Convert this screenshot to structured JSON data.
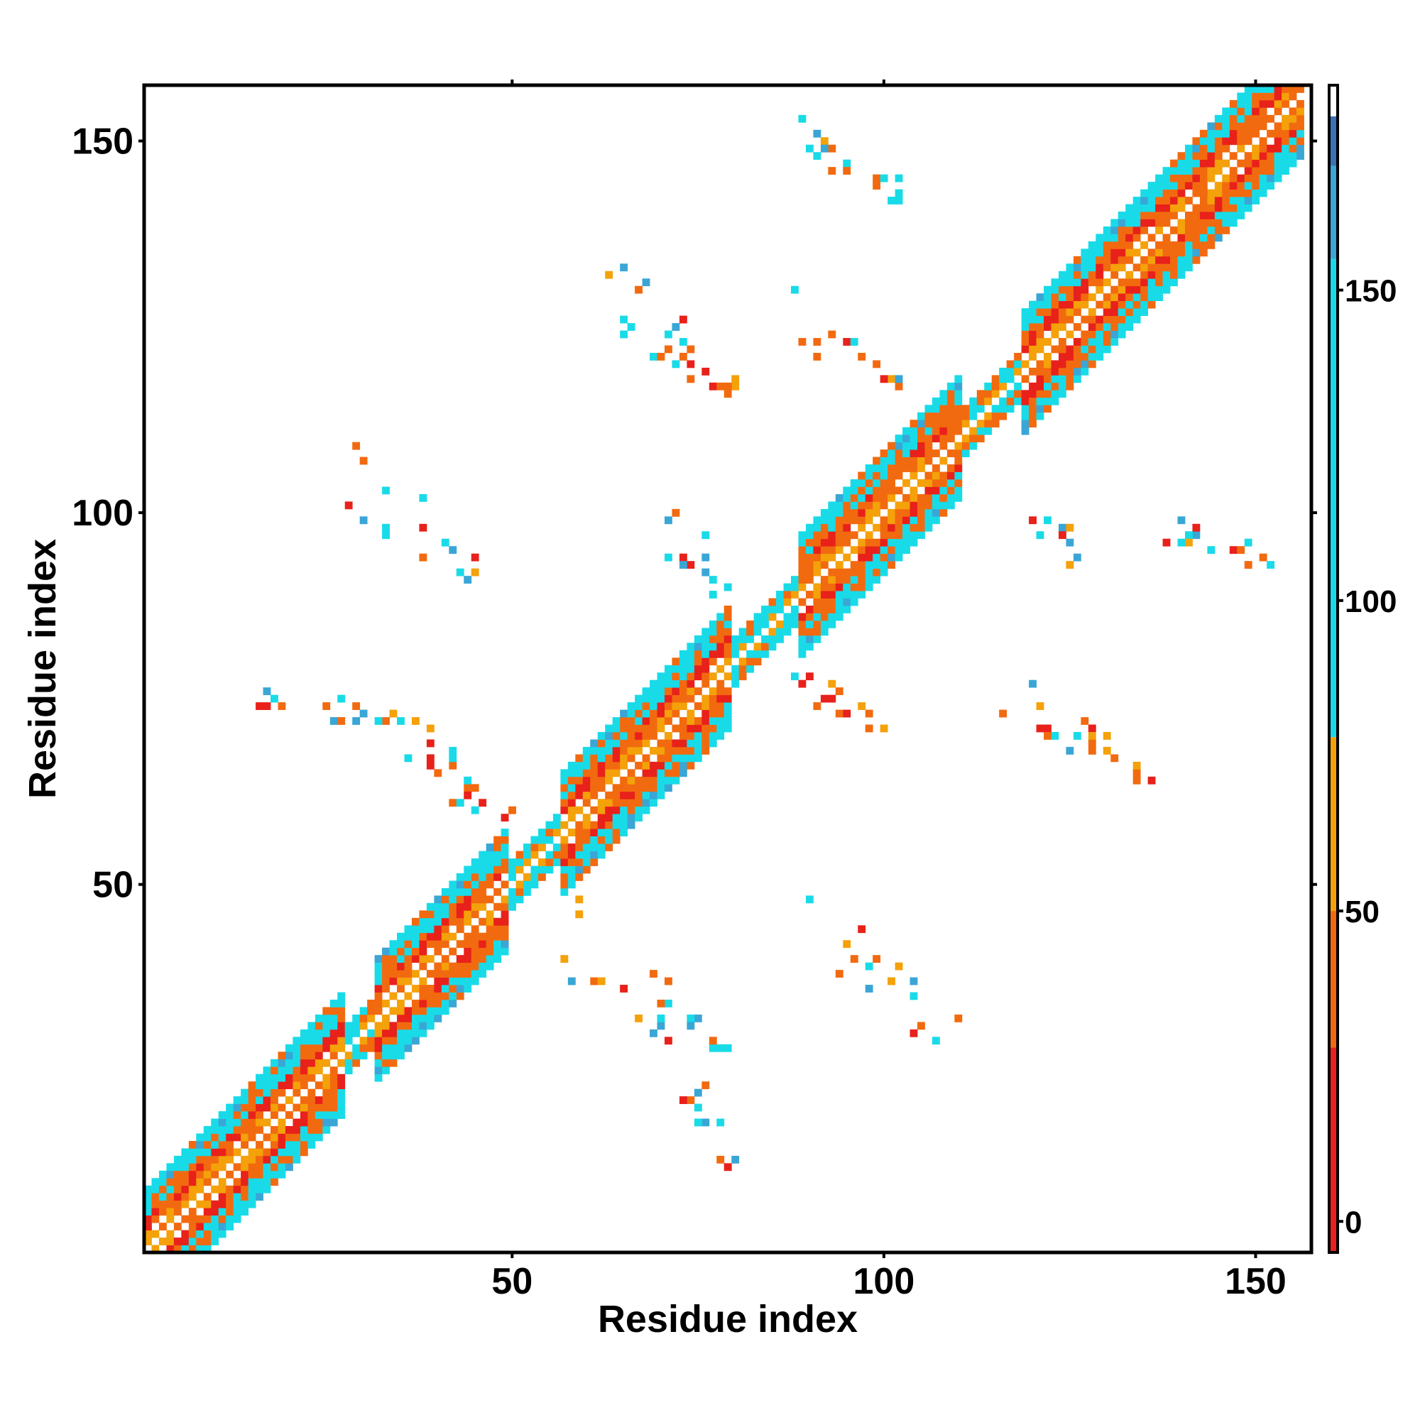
{
  "chart_data": {
    "type": "heatmap",
    "title": "",
    "xlabel": "Residue index",
    "ylabel": "Residue index",
    "xlim": [
      1,
      157
    ],
    "ylim": [
      1,
      157
    ],
    "x_ticks": [
      "50",
      "100",
      "150"
    ],
    "y_ticks": [
      "50",
      "100",
      "150"
    ],
    "x_tick_values": [
      50,
      100,
      150
    ],
    "y_tick_values": [
      50,
      100,
      150
    ],
    "colorbar": {
      "range": [
        -5,
        183
      ],
      "ticks": [
        "0",
        "50",
        "100",
        "150"
      ],
      "tick_values": [
        0,
        50,
        100,
        150
      ],
      "color_stops": [
        {
          "from": -5,
          "to": 28,
          "color": "#e8211b"
        },
        {
          "from": 28,
          "to": 50,
          "color": "#f26a0f"
        },
        {
          "from": 50,
          "to": 78,
          "color": "#f4a10a"
        },
        {
          "from": 78,
          "to": 155,
          "color": "#19dbe8"
        },
        {
          "from": 155,
          "to": 170,
          "color": "#3aa6d6"
        },
        {
          "from": 170,
          "to": 178,
          "color": "#3d72b5"
        },
        {
          "from": 178,
          "to": 183,
          "color": "#ffffff"
        }
      ]
    },
    "colors": {
      "red": "#e8211b",
      "orange": "#f26a0f",
      "amber": "#f4a10a",
      "cyan": "#19dbe8",
      "steel": "#3aa6d6"
    },
    "diagonal_band": {
      "segments": [
        {
          "from": 1,
          "to": 28,
          "helix": true
        },
        {
          "from": 28,
          "to": 32,
          "helix": false
        },
        {
          "from": 32,
          "to": 50,
          "helix": true
        },
        {
          "from": 50,
          "to": 57,
          "helix": false
        },
        {
          "from": 57,
          "to": 80,
          "helix": true
        },
        {
          "from": 80,
          "to": 89,
          "helix": false
        },
        {
          "from": 89,
          "to": 111,
          "helix": true
        },
        {
          "from": 111,
          "to": 119,
          "helix": false
        },
        {
          "from": 119,
          "to": 157,
          "helix": true
        }
      ]
    },
    "off_diagonal_contacts": [
      {
        "x": [
          16,
          35
        ],
        "y": [
          71,
          78
        ],
        "count": 18
      },
      {
        "x": [
          35,
          50
        ],
        "y": [
          58,
          72
        ],
        "count": 20
      },
      {
        "x": [
          28,
          50
        ],
        "y": [
          89,
          109
        ],
        "count": 16
      },
      {
        "x": [
          64,
          80
        ],
        "y": [
          116,
          133
        ],
        "count": 28
      },
      {
        "x": [
          70,
          80
        ],
        "y": [
          89,
          101
        ],
        "count": 14
      },
      {
        "x": [
          88,
          104
        ],
        "y": [
          116,
          130
        ],
        "count": 16
      },
      {
        "x": [
          90,
          103
        ],
        "y": [
          142,
          153
        ],
        "count": 20
      },
      {
        "x": [
          88,
          100
        ],
        "y": [
          71,
          79
        ],
        "count": 14
      },
      {
        "x": [
          116,
          135
        ],
        "y": [
          64,
          79
        ],
        "count": 24
      },
      {
        "x": [
          120,
          128
        ],
        "y": [
          93,
          104
        ],
        "count": 10
      },
      {
        "x": [
          135,
          153
        ],
        "y": [
          92,
          102
        ],
        "count": 16
      },
      {
        "x": [
          142,
          146
        ],
        "y": [
          134,
          148
        ],
        "count": 6
      },
      {
        "x": [
          55,
          80
        ],
        "y": [
          26,
          50
        ],
        "count": 24
      },
      {
        "x": [
          70,
          80
        ],
        "y": [
          12,
          30
        ],
        "count": 14
      },
      {
        "x": [
          88,
          111
        ],
        "y": [
          28,
          50
        ],
        "count": 16
      }
    ]
  }
}
